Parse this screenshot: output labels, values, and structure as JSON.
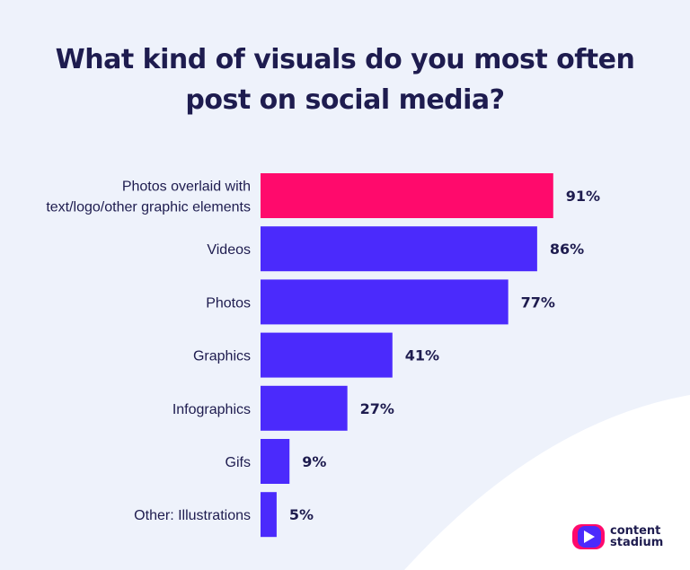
{
  "chart_data": {
    "type": "bar",
    "orientation": "horizontal",
    "title": "What kind of visuals do you most often post on social media?",
    "title_lines": [
      "What kind of visuals do you most often",
      "post on social media?"
    ],
    "categories": [
      "Photos overlaid with text/logo/other graphic elements",
      "Videos",
      "Photos",
      "Graphics",
      "Infographics",
      "Gifs",
      "Other: Illustrations"
    ],
    "category_lines": [
      [
        "Photos overlaid with",
        "text/logo/other graphic elements"
      ],
      [
        "Videos"
      ],
      [
        "Photos"
      ],
      [
        "Graphics"
      ],
      [
        "Infographics"
      ],
      [
        "Gifs"
      ],
      [
        "Other: Illustrations"
      ]
    ],
    "values": [
      91,
      86,
      77,
      41,
      27,
      9,
      5
    ],
    "value_labels": [
      "91%",
      "86%",
      "77%",
      "41%",
      "27%",
      "9%",
      "5%"
    ],
    "unit": "%",
    "xlim": [
      0,
      100
    ],
    "grid": false,
    "legend": "none",
    "colors": {
      "highlight": "#ff0a6c",
      "bar": "#4b2afc",
      "text": "#1e1c4f",
      "background": "#eef2fb"
    },
    "highlight_index": 0
  },
  "brand": {
    "name_line1": "content",
    "name_line2": "stadium",
    "icon": "content-stadium-play-icon"
  }
}
